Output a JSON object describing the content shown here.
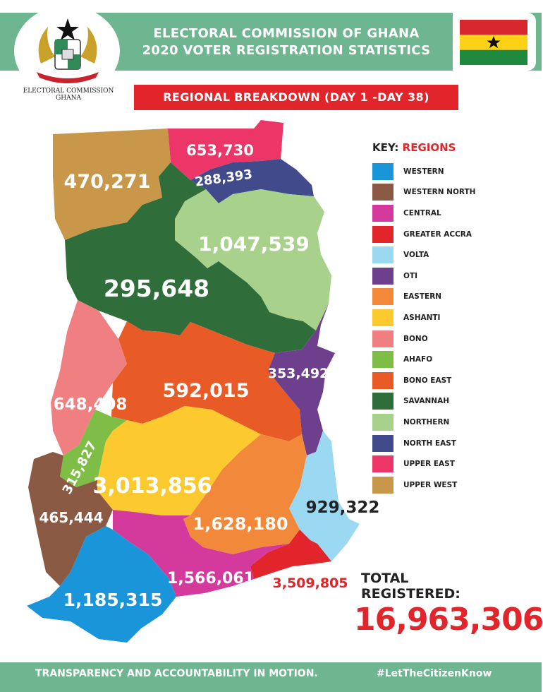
{
  "header": {
    "title_line1": "ELECTORAL COMMISSION OF GHANA",
    "title_line2": "2020 VOTER REGISTRATION STATISTICS",
    "logo_caption_line1": "ELECTORAL COMMISSION",
    "logo_caption_line2": "GHANA",
    "subtitle": "REGIONAL BREAKDOWN (DAY 1 -DAY 38)"
  },
  "key": {
    "label": "KEY:",
    "label_highlight": "REGIONS",
    "items": [
      {
        "name": "WESTERN",
        "color": "#1b95d9"
      },
      {
        "name": "WESTERN NORTH",
        "color": "#8a5a44"
      },
      {
        "name": "CENTRAL",
        "color": "#d33a9b"
      },
      {
        "name": "GREATER ACCRA",
        "color": "#e2242b"
      },
      {
        "name": "VOLTA",
        "color": "#9ad9f1"
      },
      {
        "name": "OTI",
        "color": "#6e3f8c"
      },
      {
        "name": "EASTERN",
        "color": "#f2893a"
      },
      {
        "name": "ASHANTI",
        "color": "#fcc92e"
      },
      {
        "name": "BONO",
        "color": "#f07f82"
      },
      {
        "name": "AHAFO",
        "color": "#7ebd46"
      },
      {
        "name": "BONO EAST",
        "color": "#e85a26"
      },
      {
        "name": "SAVANNAH",
        "color": "#2f6e3b"
      },
      {
        "name": "NORTHERN",
        "color": "#a8d18b"
      },
      {
        "name": "NORTH EAST",
        "color": "#414b8c"
      },
      {
        "name": "UPPER EAST",
        "color": "#ec3668"
      },
      {
        "name": "UPPER WEST",
        "color": "#c9974a"
      }
    ]
  },
  "regions": {
    "upper_west": "470,271",
    "upper_east": "653,730",
    "north_east": "288,393",
    "northern": "1,047,539",
    "savannah": "295,648",
    "bono": "648,408",
    "bono_east": "592,015",
    "oti": "353,492",
    "ahafo": "315,827",
    "ashanti": "3,013,856",
    "western_north": "465,444",
    "eastern": "1,628,180",
    "volta": "929,322",
    "western": "1,185,315",
    "central": "1,566,061",
    "greater_accra": "3,509,805"
  },
  "total": {
    "label_line1": "TOTAL",
    "label_line2": "REGISTERED:",
    "value": "16,963,306"
  },
  "footer": {
    "left": "TRANSPARENCY AND ACCOUNTABILITY IN MOTION.",
    "right": "#LetTheCitizenKnow"
  },
  "colors": {
    "header_green": "#6db68f",
    "accent_red": "#e2242b"
  }
}
